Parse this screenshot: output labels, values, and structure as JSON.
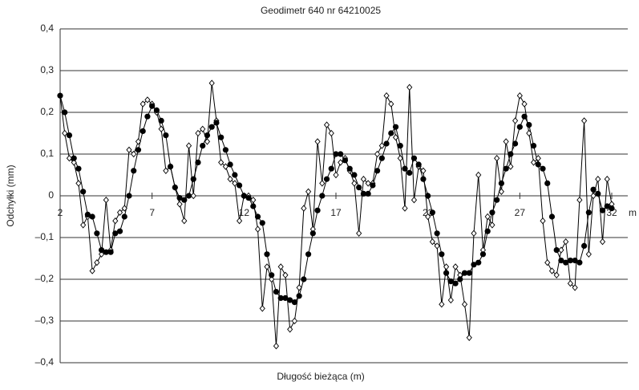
{
  "chart_data": {
    "type": "line",
    "title": "Geodimetr 640 nr 64210025",
    "xlabel": "Długość bieżąca (m)",
    "ylabel": "Odchyłki (mm)",
    "x_unit": "m",
    "xlim": [
      2,
      32
    ],
    "xticks": [
      2,
      7,
      12,
      17,
      22,
      27,
      32
    ],
    "ylim": [
      -0.4,
      0.4
    ],
    "yticks": [
      {
        "value": 0.4,
        "label": "0,4"
      },
      {
        "value": 0.3,
        "label": "0,3"
      },
      {
        "value": 0.2,
        "label": "0,2"
      },
      {
        "value": 0.1,
        "label": "0,1"
      },
      0,
      {
        "value": -0.1,
        "label": "–0,1"
      },
      {
        "value": -0.2,
        "label": "–0,2"
      },
      {
        "value": -0.3,
        "label": "–0,3"
      },
      {
        "value": -0.4,
        "label": "–0,4"
      }
    ],
    "grid": true,
    "x": [
      2,
      2.25,
      2.5,
      2.75,
      3,
      3.25,
      3.5,
      3.75,
      4,
      4.25,
      4.5,
      4.75,
      5,
      5.25,
      5.5,
      5.75,
      6,
      6.25,
      6.5,
      6.75,
      7,
      7.25,
      7.5,
      7.75,
      8,
      8.25,
      8.5,
      8.75,
      9,
      9.25,
      9.5,
      9.75,
      10,
      10.25,
      10.5,
      10.75,
      11,
      11.25,
      11.5,
      11.75,
      12,
      12.25,
      12.5,
      12.75,
      13,
      13.25,
      13.5,
      13.75,
      14,
      14.25,
      14.5,
      14.75,
      15,
      15.25,
      15.5,
      15.75,
      16,
      16.25,
      16.5,
      16.75,
      17,
      17.25,
      17.5,
      17.75,
      18,
      18.25,
      18.5,
      18.75,
      19,
      19.25,
      19.5,
      19.75,
      20,
      20.25,
      20.5,
      20.75,
      21,
      21.25,
      21.5,
      21.75,
      22,
      22.25,
      22.5,
      22.75,
      23,
      23.25,
      23.5,
      23.75,
      24,
      24.25,
      24.5,
      24.75,
      25,
      25.25,
      25.5,
      25.75,
      26,
      26.25,
      26.5,
      26.75,
      27,
      27.25,
      27.5,
      27.75,
      28,
      28.25,
      28.5,
      28.75,
      29,
      29.25,
      29.5,
      29.75,
      30,
      30.25,
      30.5,
      30.75,
      31,
      31.25,
      31.5,
      31.75,
      32
    ],
    "series": [
      {
        "color": "#000000",
        "marker": "diamond",
        "values": [
          0.24,
          0.15,
          0.09,
          0.08,
          0.03,
          -0.07,
          -0.05,
          -0.18,
          -0.16,
          -0.14,
          -0.01,
          -0.13,
          -0.06,
          -0.04,
          -0.03,
          0.11,
          0.1,
          0.13,
          0.22,
          0.23,
          0.22,
          0.2,
          0.16,
          0.06,
          0.07,
          0.02,
          -0.02,
          -0.06,
          0.12,
          0.0,
          0.15,
          0.16,
          0.13,
          0.27,
          0.18,
          0.08,
          0.07,
          0.04,
          0.03,
          -0.06,
          0.0,
          0.0,
          -0.01,
          -0.08,
          -0.27,
          -0.17,
          -0.2,
          -0.36,
          -0.17,
          -0.19,
          -0.32,
          -0.3,
          -0.22,
          -0.03,
          0.01,
          -0.08,
          0.13,
          0.03,
          0.17,
          0.15,
          0.05,
          0.08,
          0.09,
          0.06,
          0.03,
          -0.09,
          0.04,
          0.03,
          0.03,
          0.1,
          0.12,
          0.24,
          0.22,
          0.14,
          0.09,
          -0.03,
          0.26,
          -0.01,
          0.07,
          0.06,
          -0.05,
          -0.11,
          -0.12,
          -0.26,
          -0.17,
          -0.25,
          -0.17,
          -0.19,
          -0.26,
          -0.34,
          -0.09,
          0.05,
          -0.13,
          -0.05,
          -0.07,
          0.09,
          0.01,
          0.13,
          0.07,
          0.18,
          0.24,
          0.22,
          0.15,
          0.08,
          0.09,
          -0.06,
          -0.16,
          -0.18,
          -0.19,
          -0.13,
          -0.11,
          -0.21,
          -0.22,
          -0.01,
          0.18,
          -0.14,
          0.0,
          0.04,
          -0.11,
          0.04,
          -0.02
        ]
      },
      {
        "color": "#000000",
        "marker": "circle",
        "values": [
          0.24,
          0.2,
          0.145,
          0.09,
          0.065,
          0.01,
          -0.045,
          -0.05,
          -0.09,
          -0.13,
          -0.135,
          -0.135,
          -0.09,
          -0.085,
          -0.05,
          0.0,
          0.06,
          0.11,
          0.155,
          0.19,
          0.215,
          0.205,
          0.18,
          0.145,
          0.07,
          0.02,
          -0.005,
          -0.01,
          0.0,
          0.04,
          0.08,
          0.12,
          0.145,
          0.165,
          0.175,
          0.14,
          0.11,
          0.075,
          0.05,
          0.025,
          0.0,
          -0.005,
          -0.025,
          -0.05,
          -0.065,
          -0.14,
          -0.19,
          -0.23,
          -0.245,
          -0.245,
          -0.25,
          -0.255,
          -0.24,
          -0.2,
          -0.14,
          -0.09,
          -0.035,
          0.0,
          0.04,
          0.065,
          0.1,
          0.1,
          0.085,
          0.065,
          0.05,
          0.02,
          0.005,
          0.005,
          0.025,
          0.06,
          0.09,
          0.125,
          0.15,
          0.165,
          0.12,
          0.065,
          0.055,
          0.09,
          0.075,
          0.04,
          0.0,
          -0.04,
          -0.09,
          -0.14,
          -0.185,
          -0.205,
          -0.21,
          -0.2,
          -0.185,
          -0.185,
          -0.165,
          -0.16,
          -0.14,
          -0.085,
          -0.04,
          -0.01,
          0.03,
          0.065,
          0.1,
          0.125,
          0.165,
          0.19,
          0.17,
          0.12,
          0.075,
          0.065,
          0.03,
          -0.05,
          -0.13,
          -0.155,
          -0.16,
          -0.155,
          -0.155,
          -0.16,
          -0.12,
          -0.04,
          0.015,
          0.005,
          -0.035,
          -0.025,
          -0.03
        ]
      }
    ]
  }
}
